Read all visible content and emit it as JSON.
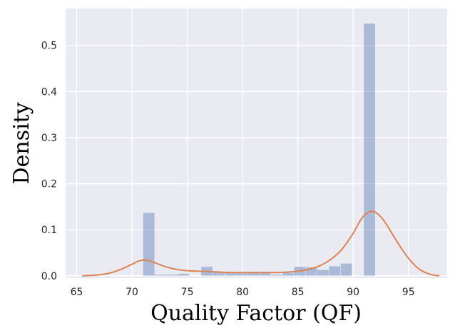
{
  "chart_data": {
    "type": "bar",
    "subtype": "histogram-with-kde",
    "title": "",
    "xlabel": "Quality Factor (QF)",
    "ylabel": "Density",
    "xlim": [
      64,
      98.5
    ],
    "ylim": [
      -0.005,
      0.58
    ],
    "xticks": [
      65,
      70,
      75,
      80,
      85,
      90,
      95
    ],
    "yticks": [
      0.0,
      0.1,
      0.2,
      0.3,
      0.4,
      0.5
    ],
    "ytick_labels": [
      "0.0",
      "0.1",
      "0.2",
      "0.3",
      "0.4",
      "0.5"
    ],
    "grid": true,
    "legend": "none",
    "colors": {
      "background": "#EAEAF2",
      "grid": "#FFFFFF",
      "bars": "#4C72B0",
      "bar_opacity": 0.4,
      "kde_line": "#DD8452"
    },
    "histogram": {
      "bin_edges": [
        71.0,
        72.05,
        73.1,
        74.15,
        75.2,
        76.25,
        77.3,
        78.35,
        79.4,
        80.45,
        81.5,
        82.55,
        83.6,
        84.65,
        85.7,
        86.75,
        87.8,
        88.85,
        89.9,
        90.95,
        92.0
      ],
      "densities": [
        0.137,
        0.003,
        0.003,
        0.005,
        0.0,
        0.02,
        0.008,
        0.006,
        0.006,
        0.007,
        0.007,
        0.003,
        0.007,
        0.02,
        0.019,
        0.013,
        0.021,
        0.027,
        0.0,
        0.548
      ]
    },
    "kde": {
      "x": [
        65.5,
        66,
        67,
        68,
        69,
        70,
        70.5,
        71,
        71.5,
        72,
        73,
        74,
        75,
        76,
        77,
        78,
        79,
        80,
        81,
        82,
        83,
        84,
        85,
        86,
        87,
        88,
        89,
        90,
        90.5,
        91,
        91.5,
        92,
        92.5,
        93,
        94,
        95,
        96,
        97,
        97.8
      ],
      "y": [
        0.0,
        0.0005,
        0.002,
        0.006,
        0.014,
        0.025,
        0.031,
        0.034,
        0.033,
        0.029,
        0.02,
        0.014,
        0.011,
        0.01,
        0.009,
        0.008,
        0.007,
        0.007,
        0.007,
        0.007,
        0.007,
        0.008,
        0.01,
        0.014,
        0.022,
        0.036,
        0.058,
        0.092,
        0.114,
        0.131,
        0.139,
        0.138,
        0.128,
        0.112,
        0.073,
        0.038,
        0.014,
        0.003,
        0.0
      ]
    }
  }
}
